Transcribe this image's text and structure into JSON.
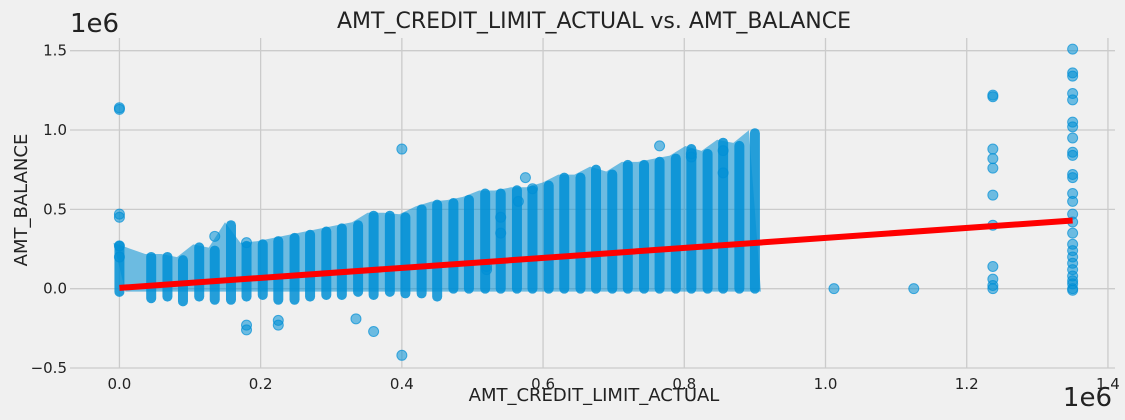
{
  "chart_data": {
    "type": "scatter",
    "title": "AMT_CREDIT_LIMIT_ACTUAL vs. AMT_BALANCE",
    "xlabel": "AMT_CREDIT_LIMIT_ACTUAL",
    "ylabel": "AMT_BALANCE",
    "x_offset_label": "1e6",
    "y_offset_label": "1e6",
    "xlim": [
      -0.07,
      1.41
    ],
    "ylim": [
      -0.5,
      1.58
    ],
    "x_ticks": [
      0.0,
      0.2,
      0.4,
      0.6,
      0.8,
      1.0,
      1.2,
      1.4
    ],
    "x_tick_labels": [
      "0.0",
      "0.2",
      "0.4",
      "0.6",
      "0.8",
      "1.0",
      "1.2",
      "1.4"
    ],
    "y_ticks": [
      -0.5,
      0.0,
      0.5,
      1.0,
      1.5
    ],
    "y_tick_labels": [
      "−0.5",
      "0.0",
      "0.5",
      "1.0",
      "1.5"
    ],
    "grid": true,
    "colors": {
      "background": "#f0f0f0",
      "grid": "#cbcbcb",
      "points": "#008fd5",
      "fit_line": "#ff0000"
    },
    "scatter_columns": [
      {
        "x": 0.0,
        "ymin": -0.02,
        "ymax": 0.27
      },
      {
        "x": 0.045,
        "ymin": -0.06,
        "ymax": 0.2
      },
      {
        "x": 0.068,
        "ymin": -0.05,
        "ymax": 0.2
      },
      {
        "x": 0.09,
        "ymin": -0.08,
        "ymax": 0.18
      },
      {
        "x": 0.113,
        "ymin": -0.05,
        "ymax": 0.26
      },
      {
        "x": 0.135,
        "ymin": -0.07,
        "ymax": 0.24
      },
      {
        "x": 0.158,
        "ymin": -0.07,
        "ymax": 0.4
      },
      {
        "x": 0.18,
        "ymin": -0.05,
        "ymax": 0.27
      },
      {
        "x": 0.203,
        "ymin": -0.04,
        "ymax": 0.28
      },
      {
        "x": 0.225,
        "ymin": -0.07,
        "ymax": 0.3
      },
      {
        "x": 0.248,
        "ymin": -0.07,
        "ymax": 0.32
      },
      {
        "x": 0.27,
        "ymin": -0.05,
        "ymax": 0.34
      },
      {
        "x": 0.293,
        "ymin": -0.04,
        "ymax": 0.36
      },
      {
        "x": 0.315,
        "ymin": -0.04,
        "ymax": 0.38
      },
      {
        "x": 0.338,
        "ymin": -0.02,
        "ymax": 0.4
      },
      {
        "x": 0.36,
        "ymin": -0.04,
        "ymax": 0.46
      },
      {
        "x": 0.383,
        "ymin": -0.02,
        "ymax": 0.46
      },
      {
        "x": 0.405,
        "ymin": -0.03,
        "ymax": 0.45
      },
      {
        "x": 0.428,
        "ymin": -0.03,
        "ymax": 0.5
      },
      {
        "x": 0.45,
        "ymin": -0.05,
        "ymax": 0.53
      },
      {
        "x": 0.473,
        "ymin": 0.0,
        "ymax": 0.54
      },
      {
        "x": 0.495,
        "ymin": 0.0,
        "ymax": 0.56
      },
      {
        "x": 0.518,
        "ymin": 0.0,
        "ymax": 0.6
      },
      {
        "x": 0.54,
        "ymin": 0.0,
        "ymax": 0.6
      },
      {
        "x": 0.563,
        "ymin": 0.0,
        "ymax": 0.62
      },
      {
        "x": 0.585,
        "ymin": 0.0,
        "ymax": 0.62
      },
      {
        "x": 0.608,
        "ymin": 0.0,
        "ymax": 0.65
      },
      {
        "x": 0.63,
        "ymin": 0.0,
        "ymax": 0.7
      },
      {
        "x": 0.653,
        "ymin": 0.0,
        "ymax": 0.7
      },
      {
        "x": 0.675,
        "ymin": 0.0,
        "ymax": 0.75
      },
      {
        "x": 0.698,
        "ymin": 0.0,
        "ymax": 0.72
      },
      {
        "x": 0.72,
        "ymin": 0.0,
        "ymax": 0.78
      },
      {
        "x": 0.743,
        "ymin": 0.0,
        "ymax": 0.78
      },
      {
        "x": 0.765,
        "ymin": 0.0,
        "ymax": 0.8
      },
      {
        "x": 0.788,
        "ymin": 0.0,
        "ymax": 0.82
      },
      {
        "x": 0.81,
        "ymin": 0.0,
        "ymax": 0.88
      },
      {
        "x": 0.833,
        "ymin": 0.0,
        "ymax": 0.85
      },
      {
        "x": 0.855,
        "ymin": 0.0,
        "ymax": 0.92
      },
      {
        "x": 0.878,
        "ymin": 0.0,
        "ymax": 0.9
      },
      {
        "x": 0.9,
        "ymin": 0.0,
        "ymax": 0.98
      }
    ],
    "scatter_points": [
      {
        "x": 0.0,
        "y": 1.14
      },
      {
        "x": 0.0,
        "y": 1.13
      },
      {
        "x": 0.0,
        "y": 0.47
      },
      {
        "x": 0.0,
        "y": 0.45
      },
      {
        "x": 0.0,
        "y": 0.27
      },
      {
        "x": 0.0,
        "y": 0.2
      },
      {
        "x": 0.4,
        "y": 0.88
      },
      {
        "x": 0.4,
        "y": -0.42
      },
      {
        "x": 0.18,
        "y": -0.23
      },
      {
        "x": 0.18,
        "y": -0.26
      },
      {
        "x": 0.225,
        "y": -0.2
      },
      {
        "x": 0.225,
        "y": -0.23
      },
      {
        "x": 0.335,
        "y": -0.19
      },
      {
        "x": 0.36,
        "y": -0.27
      },
      {
        "x": 0.135,
        "y": 0.33
      },
      {
        "x": 0.18,
        "y": 0.29
      },
      {
        "x": 0.54,
        "y": 0.45
      },
      {
        "x": 0.54,
        "y": 0.35
      },
      {
        "x": 0.565,
        "y": 0.55
      },
      {
        "x": 0.585,
        "y": 0.63
      },
      {
        "x": 0.575,
        "y": 0.7
      },
      {
        "x": 0.855,
        "y": 0.73
      },
      {
        "x": 0.81,
        "y": 0.85
      },
      {
        "x": 0.765,
        "y": 0.9
      },
      {
        "x": 0.81,
        "y": 0.83
      },
      {
        "x": 0.855,
        "y": 0.87
      },
      {
        "x": 0.52,
        "y": 0.12
      },
      {
        "x": 0.52,
        "y": 0.14
      },
      {
        "x": 1.012,
        "y": 0.0
      },
      {
        "x": 1.125,
        "y": 0.0
      },
      {
        "x": 1.237,
        "y": 1.22
      },
      {
        "x": 1.237,
        "y": 1.21
      },
      {
        "x": 1.237,
        "y": 0.88
      },
      {
        "x": 1.237,
        "y": 0.82
      },
      {
        "x": 1.237,
        "y": 0.76
      },
      {
        "x": 1.237,
        "y": 0.59
      },
      {
        "x": 1.237,
        "y": 0.4
      },
      {
        "x": 1.237,
        "y": 0.14
      },
      {
        "x": 1.237,
        "y": 0.06
      },
      {
        "x": 1.237,
        "y": 0.02
      },
      {
        "x": 1.237,
        "y": 0.0
      },
      {
        "x": 1.35,
        "y": 1.51
      },
      {
        "x": 1.35,
        "y": 1.36
      },
      {
        "x": 1.35,
        "y": 1.34
      },
      {
        "x": 1.35,
        "y": 1.23
      },
      {
        "x": 1.35,
        "y": 1.19
      },
      {
        "x": 1.35,
        "y": 1.05
      },
      {
        "x": 1.35,
        "y": 1.02
      },
      {
        "x": 1.35,
        "y": 0.95
      },
      {
        "x": 1.35,
        "y": 0.86
      },
      {
        "x": 1.35,
        "y": 0.84
      },
      {
        "x": 1.35,
        "y": 0.72
      },
      {
        "x": 1.35,
        "y": 0.7
      },
      {
        "x": 1.35,
        "y": 0.6
      },
      {
        "x": 1.35,
        "y": 0.55
      },
      {
        "x": 1.35,
        "y": 0.47
      },
      {
        "x": 1.35,
        "y": 0.42
      },
      {
        "x": 1.35,
        "y": 0.35
      },
      {
        "x": 1.35,
        "y": 0.28
      },
      {
        "x": 1.35,
        "y": 0.24
      },
      {
        "x": 1.35,
        "y": 0.2
      },
      {
        "x": 1.35,
        "y": 0.16
      },
      {
        "x": 1.35,
        "y": 0.12
      },
      {
        "x": 1.35,
        "y": 0.08
      },
      {
        "x": 1.35,
        "y": 0.05
      },
      {
        "x": 1.35,
        "y": 0.03
      },
      {
        "x": 1.35,
        "y": 0.0
      },
      {
        "x": 1.35,
        "y": -0.01
      }
    ],
    "fit_line": {
      "x": [
        0.0,
        1.35
      ],
      "y": [
        0.005,
        0.43
      ]
    }
  }
}
